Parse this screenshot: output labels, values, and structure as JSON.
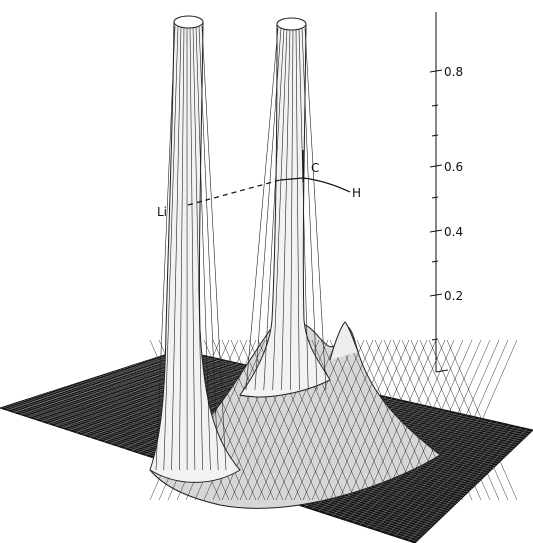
{
  "figure": {
    "atom_labels": {
      "li": "Li",
      "c": "C",
      "h": "H"
    },
    "axis": {
      "ticks": [
        "0.2",
        "0.4",
        "0.6",
        "0.8"
      ]
    },
    "colors": {
      "ink": "#111111",
      "background": "#ffffff"
    }
  }
}
